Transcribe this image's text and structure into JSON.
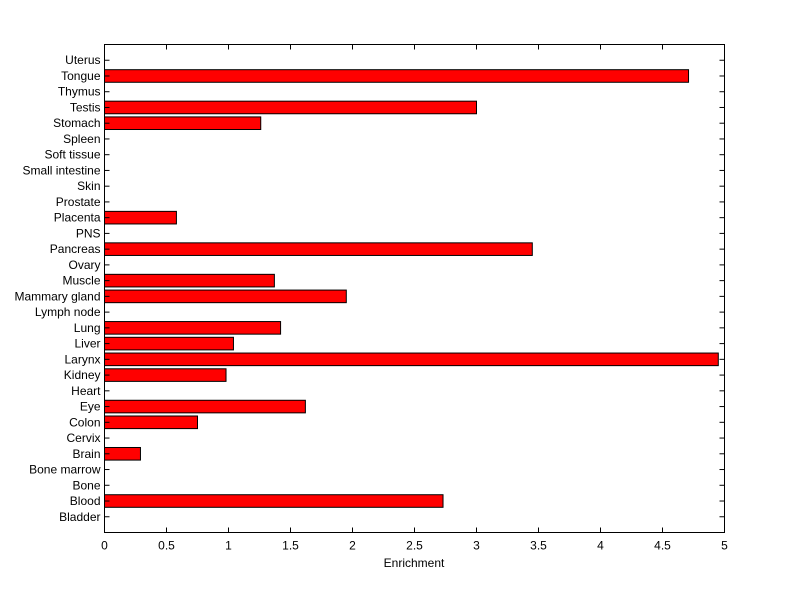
{
  "chart_data": {
    "type": "bar",
    "orientation": "horizontal",
    "title": "",
    "xlabel": "Enrichment",
    "ylabel": "",
    "xlim": [
      0,
      5
    ],
    "xticks": [
      "0",
      "0.5",
      "1",
      "1.5",
      "2",
      "2.5",
      "3",
      "3.5",
      "4",
      "4.5",
      "5"
    ],
    "grid": false,
    "bar_color": "#ff0000",
    "edge_color": "#000000",
    "categories": [
      "Bladder",
      "Blood",
      "Bone",
      "Bone marrow",
      "Brain",
      "Cervix",
      "Colon",
      "Eye",
      "Heart",
      "Kidney",
      "Larynx",
      "Liver",
      "Lung",
      "Lymph node",
      "Mammary gland",
      "Muscle",
      "Ovary",
      "Pancreas",
      "PNS",
      "Placenta",
      "Prostate",
      "Skin",
      "Small intestine",
      "Soft tissue",
      "Spleen",
      "Stomach",
      "Testis",
      "Thymus",
      "Tongue",
      "Uterus"
    ],
    "values": [
      0,
      2.73,
      0,
      0,
      0.29,
      0,
      0.75,
      1.62,
      0,
      0.98,
      4.95,
      1.04,
      1.42,
      0,
      1.95,
      1.37,
      0,
      3.45,
      0,
      0.58,
      0,
      0,
      0,
      0,
      0,
      1.26,
      3.0,
      0,
      4.71,
      0
    ]
  }
}
